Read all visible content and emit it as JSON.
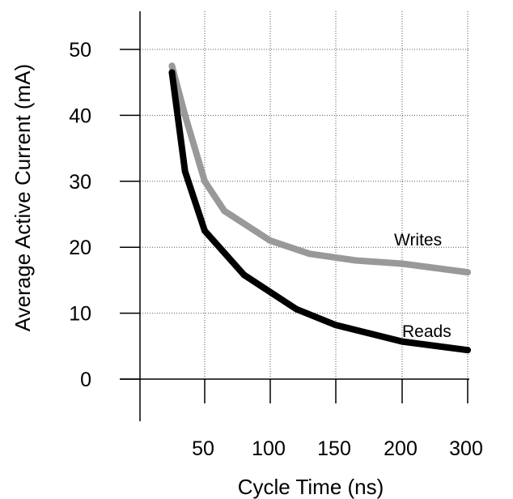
{
  "chart_data": {
    "type": "line",
    "title": "",
    "xlabel": "Cycle Time (ns)",
    "ylabel": "Average Active Current (mA)",
    "x_ticks": [
      "50",
      "100",
      "150",
      "200",
      "300"
    ],
    "y_ticks": [
      "0",
      "10",
      "20",
      "30",
      "40",
      "50"
    ],
    "ylim": [
      0,
      55
    ],
    "grid": true,
    "series": [
      {
        "name": "Writes",
        "color": "#999999",
        "points": [
          {
            "x": "25",
            "y": 47.5
          },
          {
            "x": "35",
            "y": 40
          },
          {
            "x": "50",
            "y": 30
          },
          {
            "x": "65",
            "y": 25.5
          },
          {
            "x": "100",
            "y": 21
          },
          {
            "x": "130",
            "y": 19
          },
          {
            "x": "165",
            "y": 18
          },
          {
            "x": "200",
            "y": 17.5
          },
          {
            "x": "300",
            "y": 16.2
          }
        ]
      },
      {
        "name": "Reads",
        "color": "#000000",
        "points": [
          {
            "x": "25",
            "y": 46.5
          },
          {
            "x": "35",
            "y": 31.5
          },
          {
            "x": "50",
            "y": 22.5
          },
          {
            "x": "80",
            "y": 15.8
          },
          {
            "x": "120",
            "y": 10.6
          },
          {
            "x": "150",
            "y": 8.2
          },
          {
            "x": "200",
            "y": 5.7
          },
          {
            "x": "300",
            "y": 4.4
          }
        ]
      }
    ]
  }
}
